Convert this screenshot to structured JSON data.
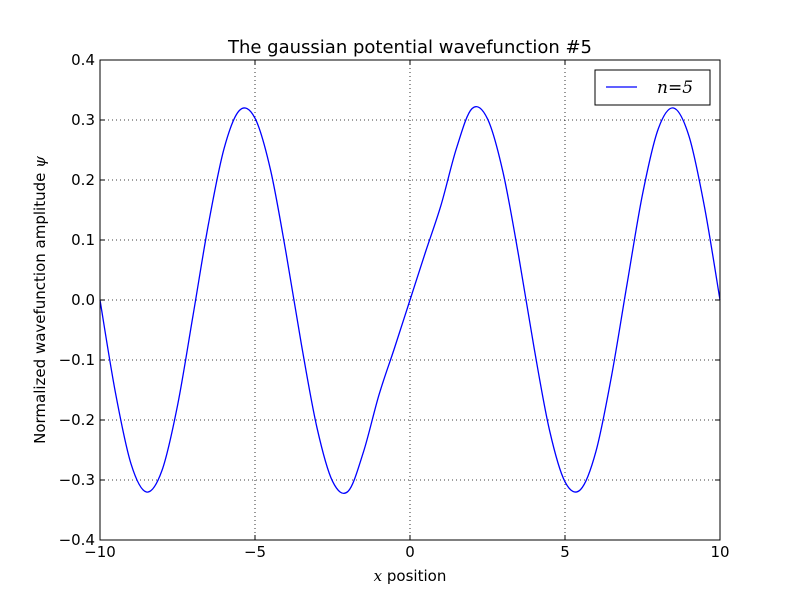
{
  "chart_data": {
    "type": "line",
    "title": "The gaussian potential wavefunction #5",
    "xlabel_math": "x",
    "xlabel_text": " position",
    "ylabel_text": "Normalized wavefunction amplitude ",
    "ylabel_math": "ψ",
    "xlim": [
      -10,
      10
    ],
    "ylim": [
      -0.4,
      0.4
    ],
    "xticks": [
      -10,
      -5,
      0,
      5,
      10
    ],
    "xtick_labels": [
      "−10",
      "−5",
      "0",
      "5",
      "10"
    ],
    "yticks": [
      -0.4,
      -0.3,
      -0.2,
      -0.1,
      0.0,
      0.1,
      0.2,
      0.3,
      0.4
    ],
    "ytick_labels": [
      "−0.4",
      "−0.3",
      "−0.2",
      "−0.1",
      "0.0",
      "0.1",
      "0.2",
      "0.3",
      "0.4"
    ],
    "grid": true,
    "legend_position": "top-right",
    "series": [
      {
        "name": "n=5",
        "color": "#0000ff",
        "x": [
          -10.0,
          -9.5,
          -9.0,
          -8.5,
          -8.0,
          -7.5,
          -7.0,
          -6.5,
          -6.0,
          -5.5,
          -5.0,
          -4.5,
          -4.0,
          -3.5,
          -3.0,
          -2.5,
          -2.0,
          -1.5,
          -1.0,
          -0.5,
          0.0,
          0.5,
          1.0,
          1.5,
          2.0,
          2.5,
          3.0,
          3.5,
          4.0,
          4.5,
          5.0,
          5.5,
          6.0,
          6.5,
          7.0,
          7.5,
          8.0,
          8.5,
          9.0,
          9.5,
          10.0
        ],
        "y": [
          0.0,
          -0.155,
          -0.273,
          -0.32,
          -0.284,
          -0.176,
          -0.026,
          0.127,
          0.252,
          0.316,
          0.303,
          0.217,
          0.079,
          -0.075,
          -0.213,
          -0.302,
          -0.319,
          -0.253,
          -0.158,
          -0.08,
          0.0,
          0.08,
          0.158,
          0.253,
          0.319,
          0.302,
          0.213,
          0.075,
          -0.079,
          -0.217,
          -0.303,
          -0.316,
          -0.252,
          -0.127,
          0.026,
          0.176,
          0.284,
          0.32,
          0.273,
          0.155,
          0.0
        ]
      }
    ]
  }
}
